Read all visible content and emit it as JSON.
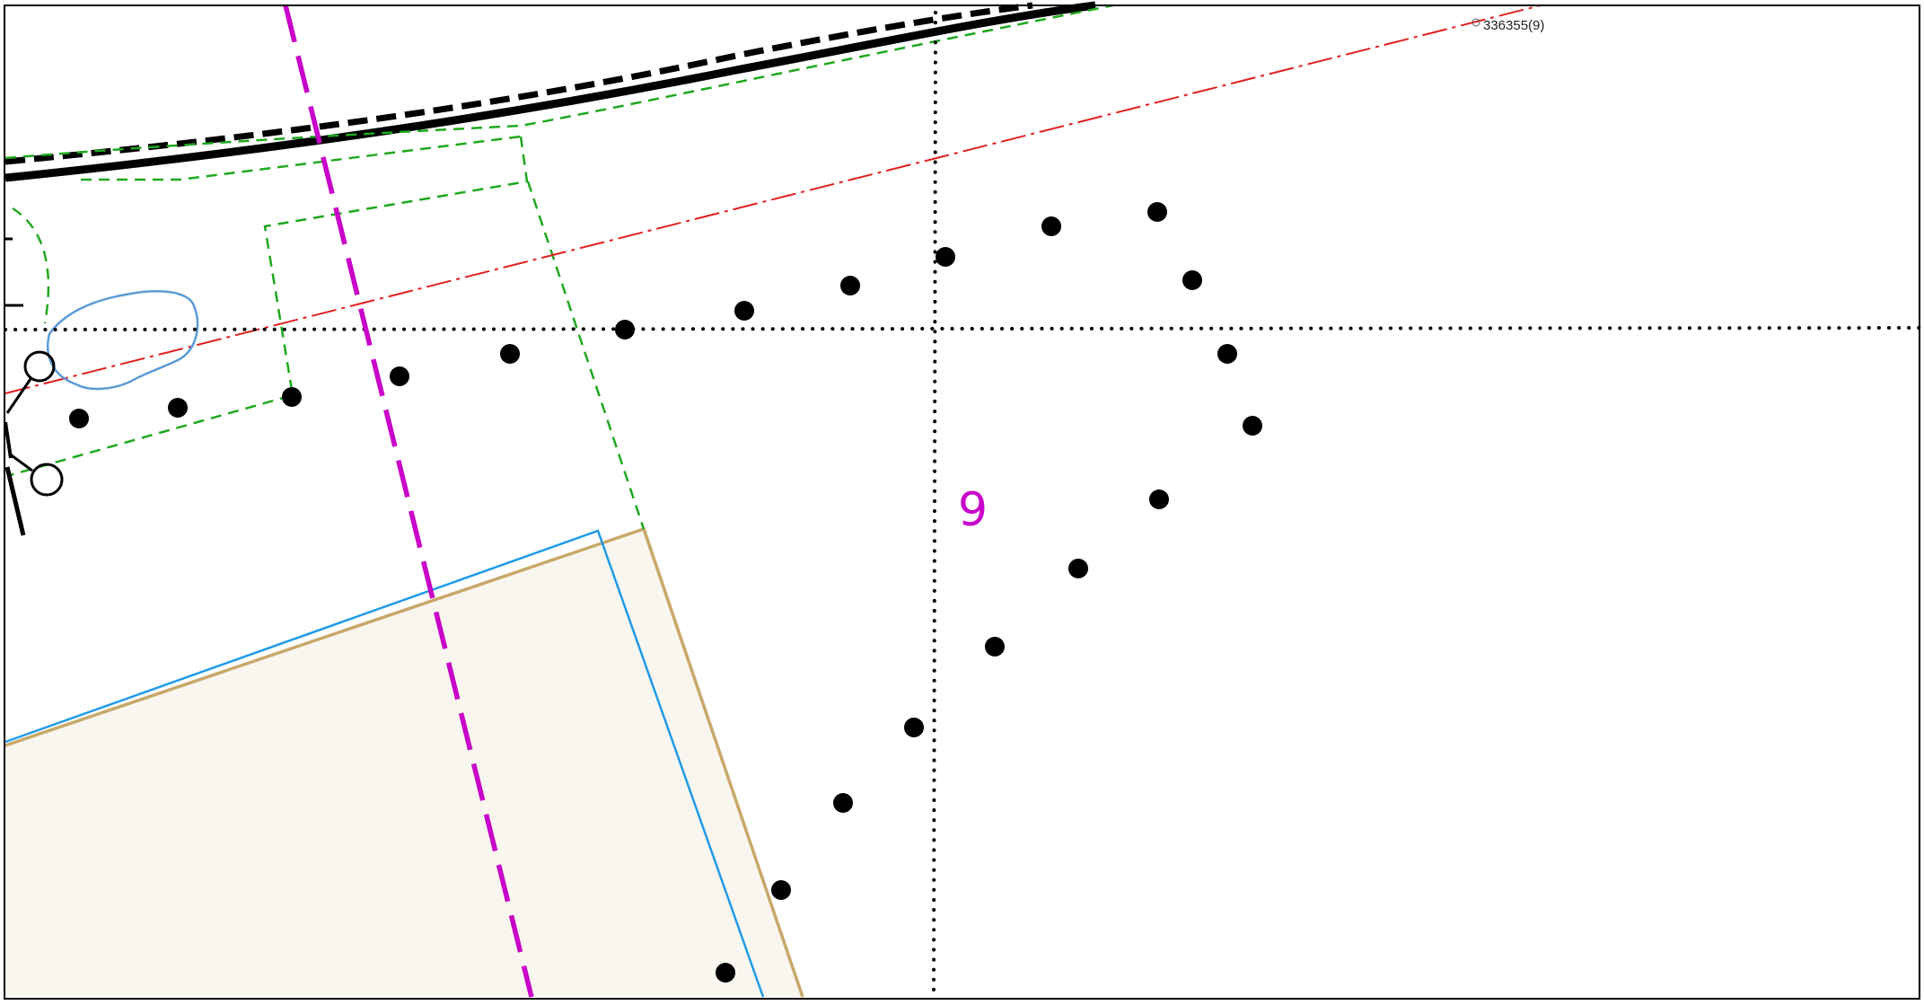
{
  "map": {
    "plot_number": "9",
    "reference_label": "336355(9)",
    "colors": {
      "boundary_purple": "#c800c8",
      "easement_green": "#1fa81f",
      "red_line": "#e02020",
      "tan_boundary": "#c8a86a",
      "blue_boundary": "#1f9be8",
      "pond_outline": "#5b9bd5",
      "parcel_fill": "#f8f6ee",
      "ink": "#000000"
    },
    "icons": [
      "survey-point-icon",
      "tree-symbol-icon"
    ]
  }
}
